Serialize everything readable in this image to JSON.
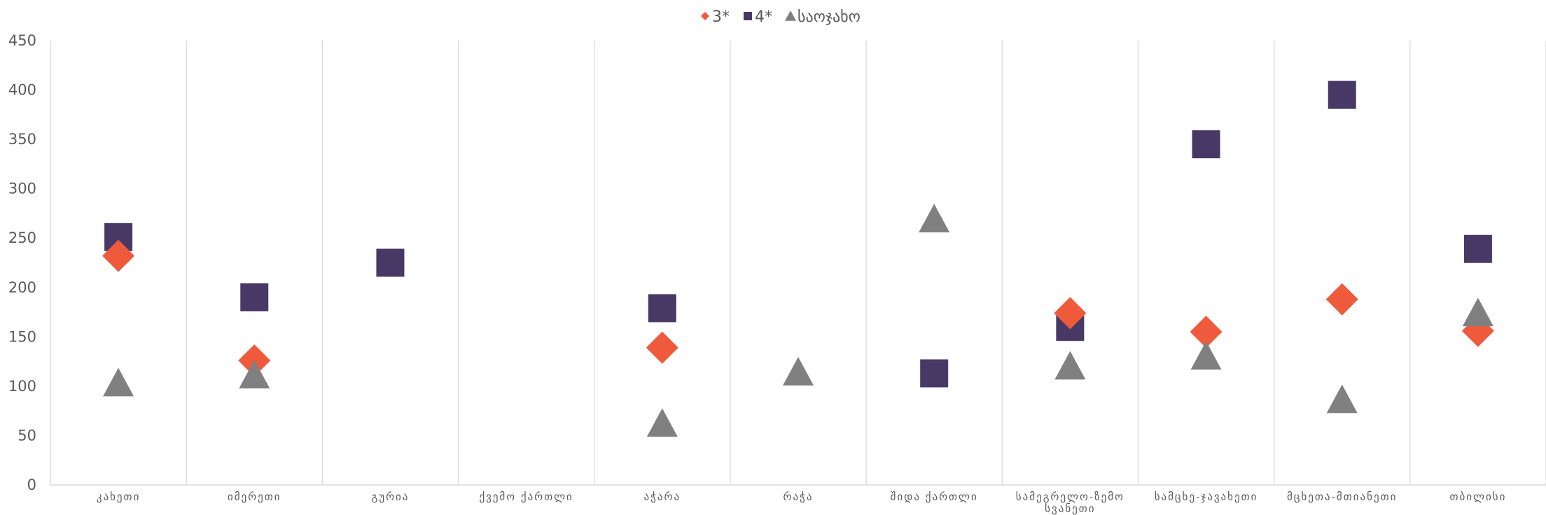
{
  "chart_data": {
    "type": "scatter",
    "categories": [
      [
        "კახეთი"
      ],
      [
        "იმერეთი"
      ],
      [
        "გურია"
      ],
      [
        "ქვემო ქართლი"
      ],
      [
        "აჭარა"
      ],
      [
        "რაჭა"
      ],
      [
        "შიდა ქართლი"
      ],
      [
        "სამეგრელო-ზემო",
        "სვანეთი"
      ],
      [
        "სამცხე-ჯავახეთი"
      ],
      [
        "მცხეთა-მთიანეთი"
      ],
      [
        "თბილისი"
      ]
    ],
    "series": [
      {
        "name": "3*",
        "marker": "diamond",
        "color": "#f05a3c",
        "values": [
          232,
          126,
          null,
          null,
          139,
          null,
          null,
          174,
          155,
          188,
          156
        ]
      },
      {
        "name": "4*",
        "marker": "square",
        "color": "#483866",
        "values": [
          251,
          190,
          225,
          null,
          179,
          null,
          113,
          160,
          345,
          395,
          239
        ]
      },
      {
        "name": "საოჯახო",
        "marker": "triangle",
        "color": "#808080",
        "values": [
          103,
          111,
          null,
          null,
          62,
          null,
          null,
          120,
          null,
          86,
          174
        ]
      }
    ],
    "extra_points": [
      {
        "series": "საოჯახო",
        "category_index": 5,
        "value": 114
      },
      {
        "series": "საოჯახო",
        "category_index": 6,
        "value": 269
      },
      {
        "series": "საოჯახო",
        "category_index": 8,
        "value": 130
      }
    ],
    "ylim": [
      0,
      450
    ],
    "yticks": [
      0,
      50,
      100,
      150,
      200,
      250,
      300,
      350,
      400,
      450
    ],
    "legend_position": "top",
    "grid": "vertical category separators"
  }
}
